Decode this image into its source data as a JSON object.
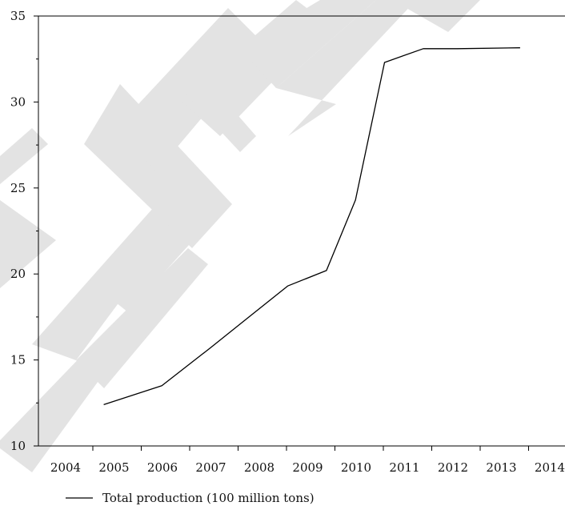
{
  "chart_data": {
    "type": "line",
    "title": "",
    "xlabel": "",
    "ylabel": "",
    "x_tick_labels": [
      "2004",
      "2005",
      "2006",
      "2007",
      "2008",
      "2009",
      "2010",
      "2011",
      "2012",
      "2013",
      "2014"
    ],
    "y_ticks": [
      10,
      15,
      20,
      25,
      30,
      35
    ],
    "ylim": [
      10,
      35
    ],
    "grid": false,
    "legend_position": "bottom-left",
    "series": [
      {
        "name": "Total production (100 million tons)",
        "color": "#000000",
        "x": [
          2005.2,
          2006.4,
          2007.4,
          2008.2,
          2009.0,
          2009.8,
          2010.4,
          2011.0,
          2011.8,
          2012.5,
          2013.8
        ],
        "y": [
          12.4,
          13.5,
          15.7,
          17.5,
          19.3,
          20.2,
          24.3,
          32.3,
          33.1,
          33.1,
          33.15
        ]
      }
    ]
  },
  "watermark": {
    "color": "#e3e3e3",
    "letters": "RETRACTED"
  }
}
